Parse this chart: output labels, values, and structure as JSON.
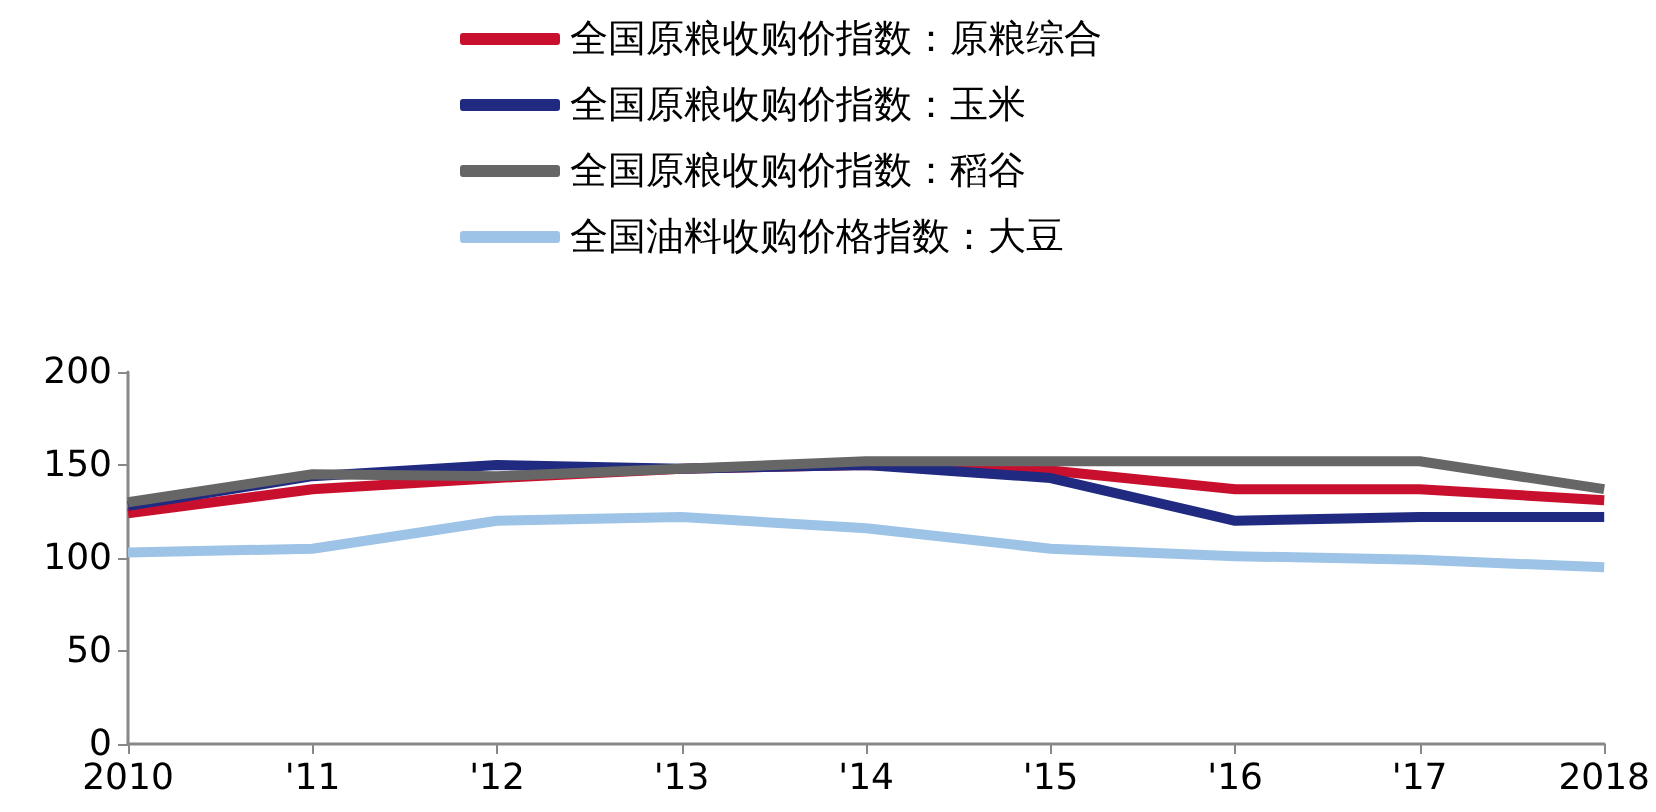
{
  "chart_data": {
    "type": "line",
    "categories": [
      "2010",
      "'11",
      "'12",
      "'13",
      "'14",
      "'15",
      "'16",
      "'17",
      "2018"
    ],
    "series": [
      {
        "name": "全国原粮收购价指数：原粮综合",
        "color": "#c8102e",
        "values": [
          124,
          137,
          143,
          148,
          150,
          147,
          137,
          137,
          131
        ]
      },
      {
        "name": "全国原粮收购价指数：玉米",
        "color": "#1f2a80",
        "values": [
          128,
          144,
          150,
          148,
          150,
          143,
          120,
          122,
          122
        ]
      },
      {
        "name": "全国原粮收购价指数：稻谷",
        "color": "#666666",
        "values": [
          130,
          145,
          144,
          148,
          152,
          152,
          152,
          152,
          137
        ]
      },
      {
        "name": "全国油料收购价格指数：大豆",
        "color": "#9dc3e6",
        "values": [
          103,
          105,
          120,
          122,
          116,
          105,
          101,
          99,
          95
        ]
      }
    ],
    "ylim": [
      0,
      200
    ],
    "yticks": [
      0,
      50,
      100,
      150,
      200
    ],
    "grid": false,
    "legend": "top",
    "marker": "none",
    "line_style": "solid"
  }
}
